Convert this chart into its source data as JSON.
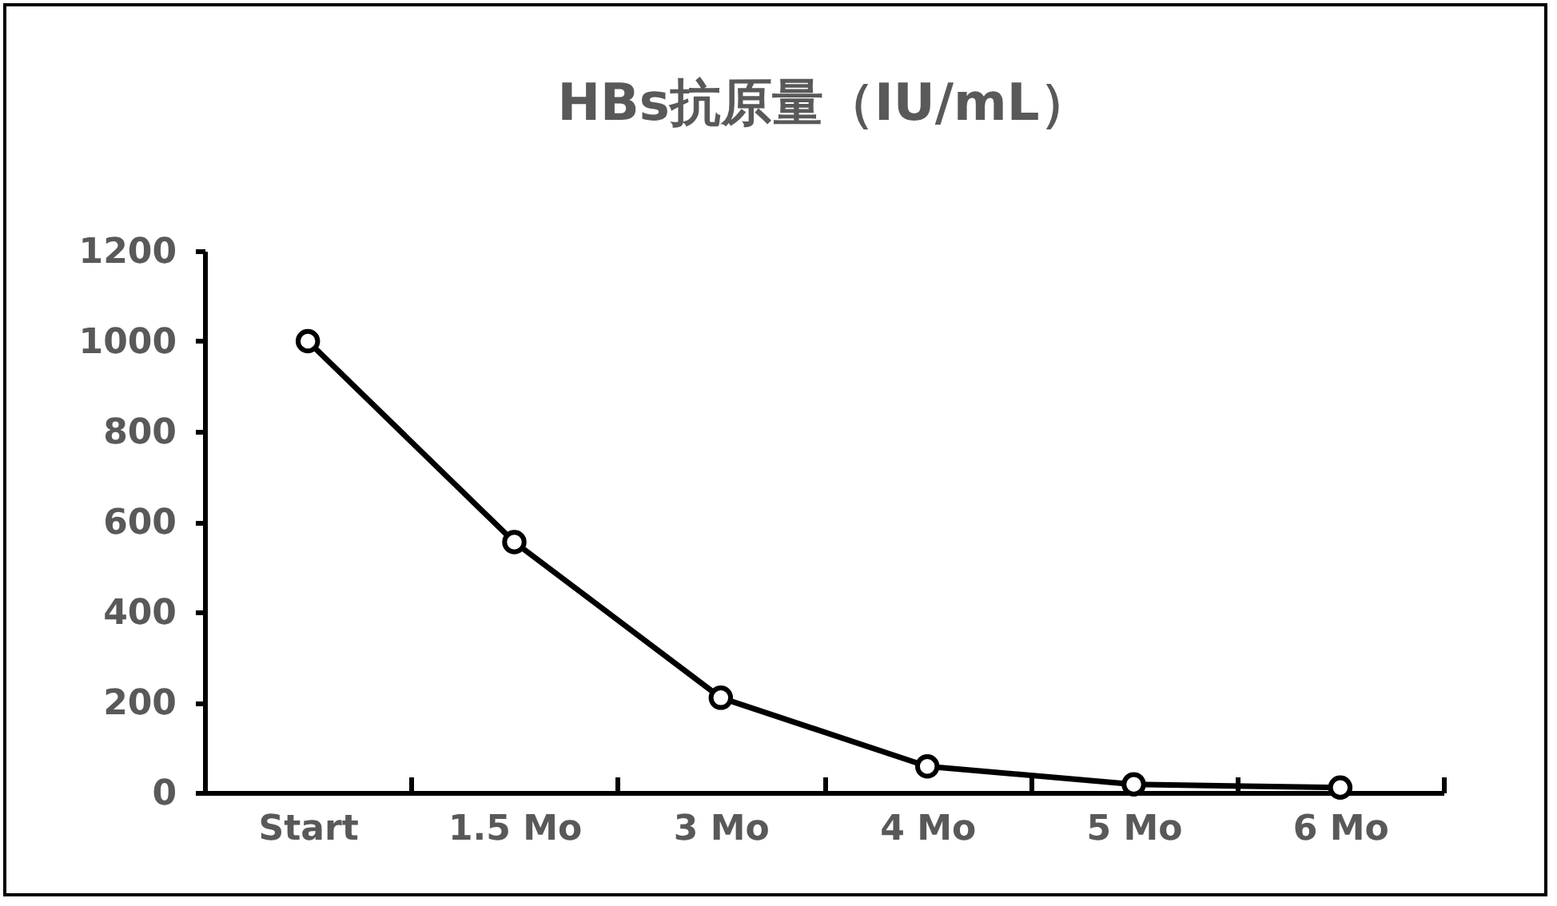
{
  "chart_data": {
    "type": "line",
    "title": "HBs抗原量（IU/mL）",
    "categories": [
      "Start",
      "1.5 Mo",
      "3 Mo",
      "4 Mo",
      "5 Mo",
      "6 Mo"
    ],
    "series": [
      {
        "color": "#000000",
        "values": [
          1000,
          555,
          210,
          58,
          18,
          11
        ]
      }
    ],
    "ylim": [
      0,
      1200
    ],
    "yticks": [
      0,
      200,
      400,
      600,
      800,
      1000,
      1200
    ],
    "grid": false,
    "marker": "circle",
    "line_style": "solid"
  }
}
